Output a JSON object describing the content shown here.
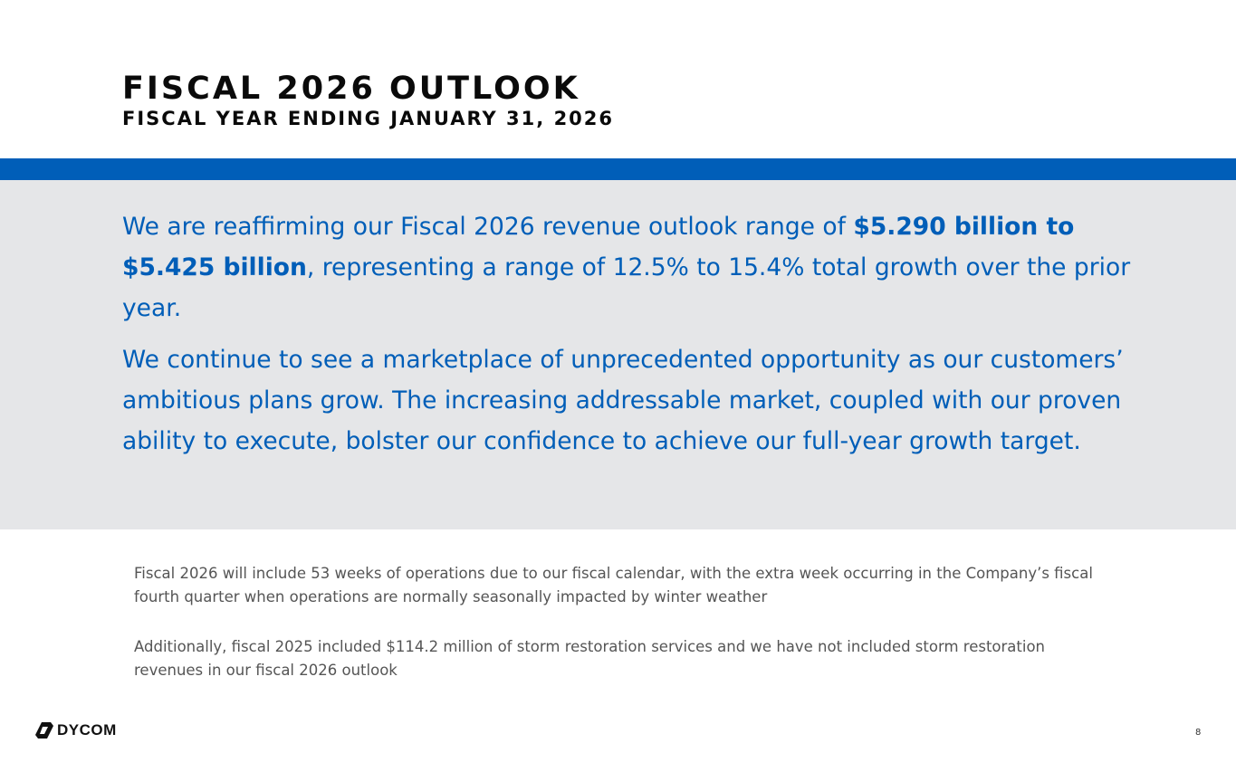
{
  "header": {
    "title": "FISCAL 2026 OUTLOOK",
    "subtitle": "FISCAL YEAR ENDING JANUARY 31, 2026"
  },
  "highlight": {
    "p1_prefix": "We are reaffirming our Fiscal 2026 revenue outlook range of ",
    "p1_bold": "$5.290 billion to $5.425 billion",
    "p1_suffix": ", representing a range of 12.5% to 15.4% total growth over the prior year.",
    "p2": "We continue to see a marketplace of unprecedented opportunity as our customers’ ambitious plans grow. The increasing addressable market, coupled with our proven ability to execute, bolster our confidence to achieve our full-year growth target."
  },
  "notes": [
    "Fiscal 2026 will include 53 weeks of operations due to our fiscal calendar, with the extra week occurring in the Company’s fiscal fourth quarter when operations are normally seasonally impacted by winter weather",
    "Additionally, fiscal 2025 included $114.2 million of storm restoration services and we have not included storm restoration revenues in our fiscal 2026 outlook"
  ],
  "footer": {
    "logo_text": "DYCOM",
    "page_number": "8"
  },
  "colors": {
    "accent": "#005eb8",
    "band": "#e5e6e8"
  }
}
